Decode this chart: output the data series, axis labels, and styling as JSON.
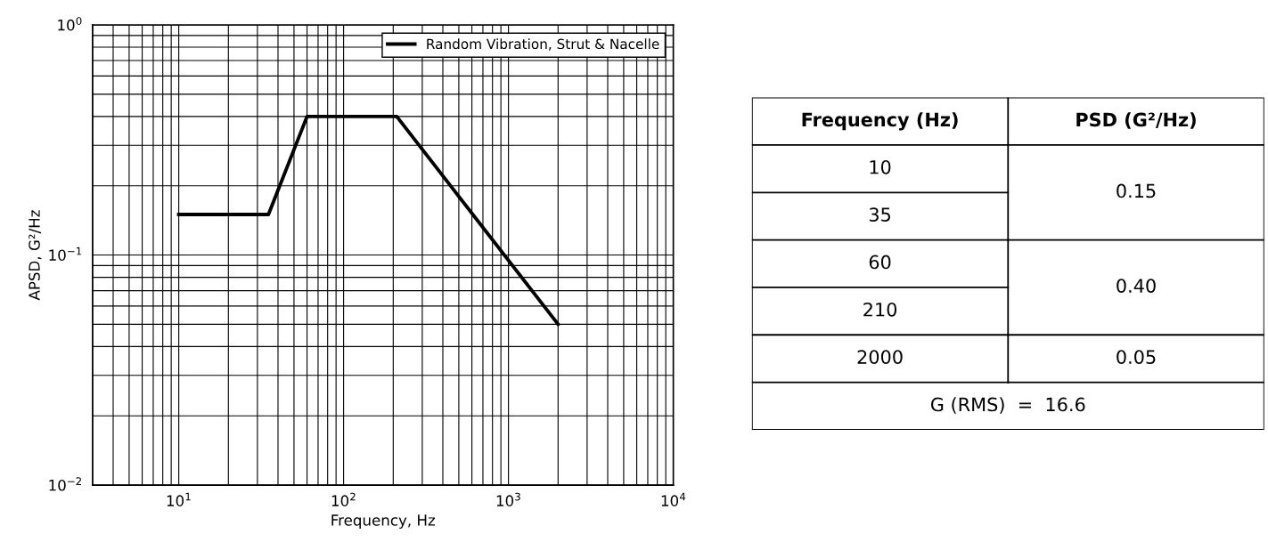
{
  "chart_data": [
    {
      "type": "line",
      "xlabel": "Frequency, Hz",
      "ylabel": "APSD, G²/Hz",
      "log": "xy",
      "grid": true,
      "legend": "top right",
      "marker": "none",
      "line_style": "solid",
      "xlim": [
        3,
        10000
      ],
      "ylim": [
        0.01,
        1
      ],
      "xticks": [
        {
          "value": 10,
          "label": "10$^{1}$"
        },
        {
          "value": 100,
          "label": "10$^{2}$"
        },
        {
          "value": 1000,
          "label": "10$^{3}$"
        },
        {
          "value": 10000,
          "label": "10$^{4}$"
        }
      ],
      "yticks": [
        {
          "value": 0.01,
          "label": "10$^{−2}$"
        },
        {
          "value": 0.1,
          "label": "10$^{−1}$"
        },
        {
          "value": 1,
          "label": "10$^{0}$"
        }
      ],
      "x": [
        10,
        35,
        60,
        210,
        2000
      ],
      "series": [
        {
          "name": "Random Vibration, Strut & Nacelle",
          "color": "#000000",
          "values": [
            0.15,
            0.15,
            0.4,
            0.4,
            0.05
          ]
        }
      ]
    },
    {
      "type": "other",
      "categories": [
        "Frequency (Hz)",
        "PSD (G²/Hz)"
      ],
      "cell_labels": [
        [
          "10",
          "0.15"
        ],
        [
          "35",
          null
        ],
        [
          "60",
          "0.40"
        ],
        [
          "210",
          null
        ],
        [
          "2000",
          "0.05"
        ]
      ],
      "annotations": [
        "G (RMS)  =  16.6"
      ]
    }
  ]
}
